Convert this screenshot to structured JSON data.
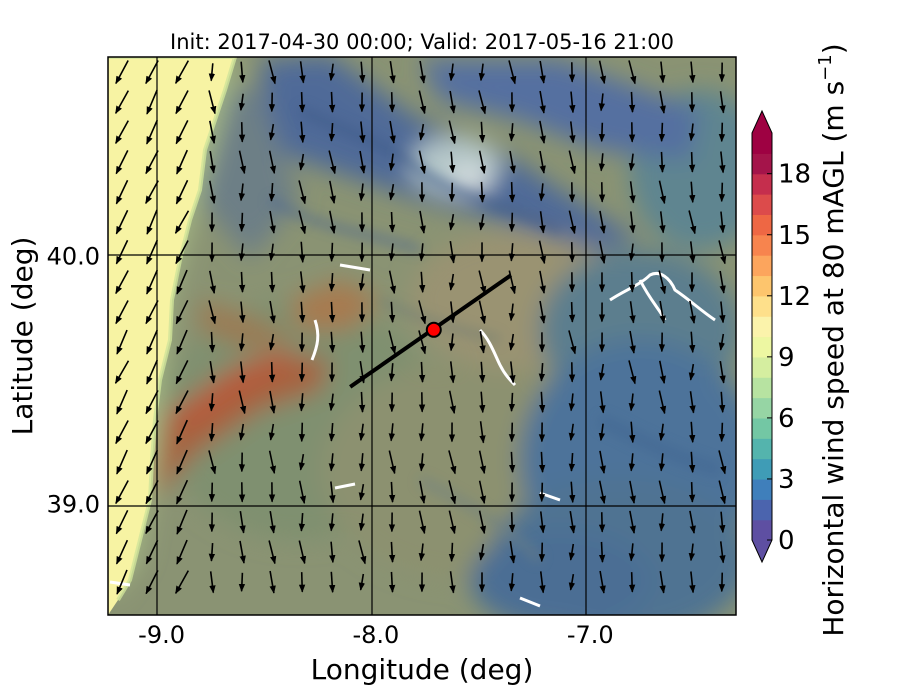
{
  "title": "Init: 2017-04-30 00:00; Valid: 2017-05-16 21:00",
  "xlabel": "Longitude (deg)",
  "ylabel": "Latitude (deg)",
  "colorbar": {
    "label_main": "Horizontal wind speed at 80 mAGL (m s",
    "label_sup": "−1",
    "label_close": ")",
    "ticks": [
      {
        "value": 0,
        "label": "0"
      },
      {
        "value": 3,
        "label": "3"
      },
      {
        "value": 6,
        "label": "6"
      },
      {
        "value": 9,
        "label": "9"
      },
      {
        "value": 12,
        "label": "12"
      },
      {
        "value": 15,
        "label": "15"
      },
      {
        "value": 18,
        "label": "18"
      }
    ],
    "range": [
      0,
      20
    ],
    "extend": "both",
    "colors": [
      "#5e4fa2",
      "#4b64ae",
      "#3f7fbb",
      "#3f9cb6",
      "#54b4ad",
      "#73c7a4",
      "#96d5a4",
      "#b7e3a1",
      "#d5eea0",
      "#edf7a2",
      "#fbf3ab",
      "#fee08b",
      "#fdc56d",
      "#fca55d",
      "#f7844e",
      "#ee6744",
      "#dc4b4b",
      "#c52e4d",
      "#a4144a",
      "#9e0142"
    ],
    "under_color": "#5e4fa2",
    "over_color": "#9e0142"
  },
  "chart_data": {
    "type": "map",
    "xlim": [
      -9.25,
      -6.32
    ],
    "ylim": [
      38.55,
      40.8
    ],
    "xticks": [
      {
        "value": -9.0,
        "label": "-9.0"
      },
      {
        "value": -8.0,
        "label": "-8.0"
      },
      {
        "value": -7.0,
        "label": "-7.0"
      }
    ],
    "yticks": [
      {
        "value": 40.0,
        "label": "40.0"
      },
      {
        "value": 39.0,
        "label": "39.0"
      }
    ],
    "grid": true,
    "site_marker": {
      "lon": -7.73,
      "lat": 39.7,
      "color": "#ff0000"
    },
    "transect": {
      "start": [
        -8.12,
        39.47
      ],
      "end": [
        -7.37,
        39.92
      ]
    },
    "wind_vectors": "field of arrows, mostly pointing south to south-southeast"
  }
}
